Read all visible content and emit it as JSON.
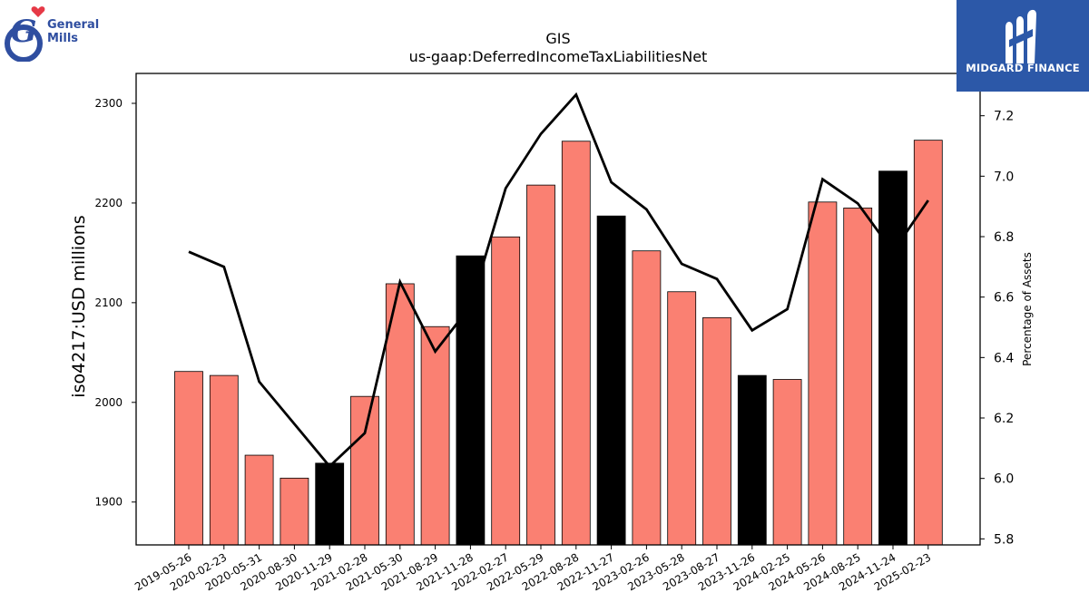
{
  "logos": {
    "left_brand": "General Mills",
    "left_brand_line1": "General",
    "left_brand_line2": "Mills",
    "right_brand": "MIDGARD FINANCE"
  },
  "chart_data": {
    "type": "bar",
    "title": "GIS",
    "subtitle": "us-gaap:DeferredIncomeTaxLiabilitiesNet",
    "ylabel": "iso4217:USD  millions",
    "y2label": "Percentage of Assets",
    "ylim": [
      1857,
      2330
    ],
    "y2lim": [
      5.78,
      7.34
    ],
    "yticks": [
      1900,
      2000,
      2100,
      2200,
      2300
    ],
    "y2ticks": [
      5.8,
      6.0,
      6.2,
      6.4,
      6.6,
      6.8,
      7.0,
      7.2
    ],
    "colors": {
      "bar_default": "#fa8072",
      "bar_highlight": "#000000",
      "line": "#000000"
    },
    "categories": [
      "2019-05-26",
      "2020-02-23",
      "2020-05-31",
      "2020-08-30",
      "2020-11-29",
      "2021-02-28",
      "2021-05-30",
      "2021-08-29",
      "2021-11-28",
      "2022-02-27",
      "2022-05-29",
      "2022-08-28",
      "2022-11-27",
      "2023-02-26",
      "2023-05-28",
      "2023-08-27",
      "2023-11-26",
      "2024-02-25",
      "2024-05-26",
      "2024-08-25",
      "2024-11-24",
      "2025-02-23"
    ],
    "series": [
      {
        "type": "bar",
        "values": [
          2031,
          2027,
          1947,
          1924,
          1939,
          2006,
          2119,
          2076,
          2147,
          2166,
          2218,
          2262,
          2187,
          2152,
          2111,
          2085,
          2027,
          2023,
          2201,
          2195,
          2232,
          2263
        ],
        "highlight": [
          false,
          false,
          false,
          false,
          true,
          false,
          false,
          false,
          true,
          false,
          false,
          false,
          true,
          false,
          false,
          false,
          true,
          false,
          false,
          false,
          true,
          false
        ]
      },
      {
        "type": "line",
        "axis": "right",
        "values": [
          6.75,
          6.7,
          6.32,
          6.18,
          6.04,
          6.15,
          6.65,
          6.42,
          6.57,
          6.96,
          7.14,
          7.27,
          6.98,
          6.89,
          6.71,
          6.66,
          6.49,
          6.56,
          6.99,
          6.91,
          6.75,
          6.92
        ]
      }
    ]
  }
}
